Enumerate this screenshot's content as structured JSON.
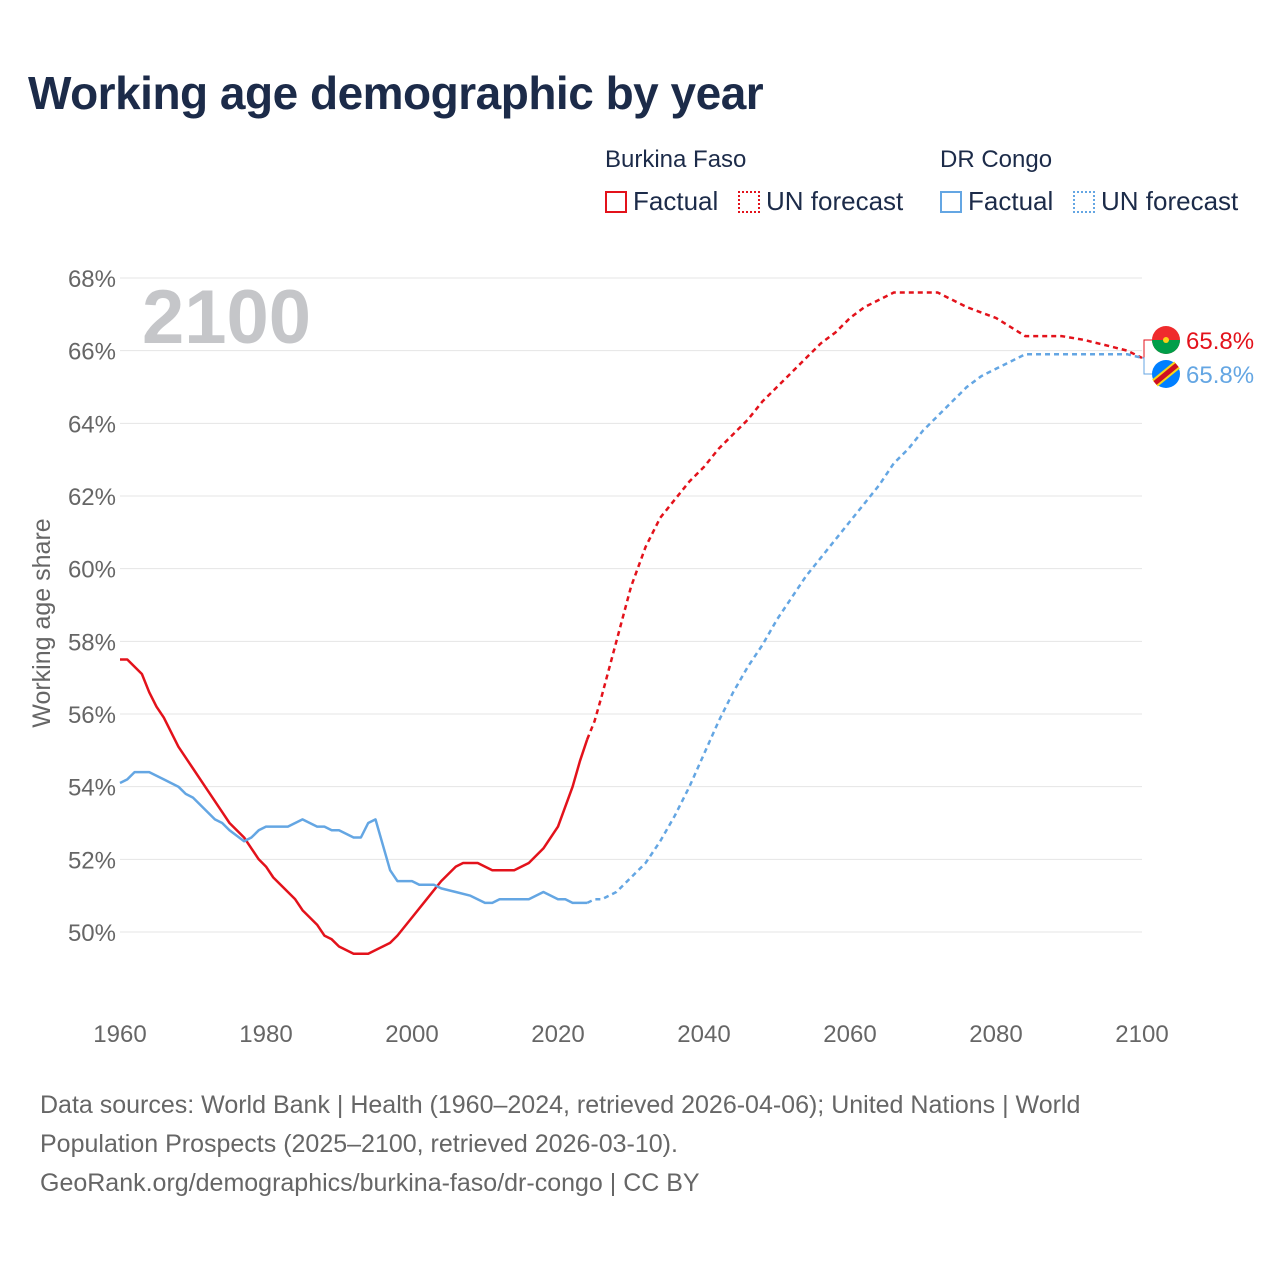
{
  "title": "Working age demographic by year",
  "legend": {
    "groups": [
      {
        "name": "Burkina Faso",
        "factual_label": "Factual",
        "forecast_label": "UN forecast",
        "color": "#e3121b"
      },
      {
        "name": "DR Congo",
        "factual_label": "Factual",
        "forecast_label": "UN forecast",
        "color": "#64a6e3"
      }
    ]
  },
  "footer": {
    "line1": "Data sources: World Bank | Health (1960–2024, retrieved 2026-04-06); United Nations | World",
    "line2": "Population Prospects (2025–2100, retrieved 2026-03-10).",
    "line3": "GeoRank.org/demographics/burkina-faso/dr-congo | CC BY"
  },
  "chart_data": {
    "type": "line",
    "title": "Working age demographic by year",
    "year_watermark": "2100",
    "ylabel": "Working age share",
    "xlabel": "",
    "xlim": [
      1960,
      2100
    ],
    "ylim": [
      48,
      68
    ],
    "x_ticks": [
      1960,
      1980,
      2000,
      2020,
      2040,
      2060,
      2080,
      2100
    ],
    "y_ticks": [
      50,
      52,
      54,
      56,
      58,
      60,
      62,
      64,
      66,
      68
    ],
    "y_tick_suffix": "%",
    "grid": true,
    "factual_end_year": 2024,
    "series": [
      {
        "name": "Burkina Faso",
        "color": "#e3121b",
        "end_label": "65.8%",
        "points": [
          [
            1960,
            57.5
          ],
          [
            1961,
            57.5
          ],
          [
            1963,
            57.1
          ],
          [
            1964,
            56.6
          ],
          [
            1965,
            56.2
          ],
          [
            1966,
            55.9
          ],
          [
            1968,
            55.1
          ],
          [
            1970,
            54.5
          ],
          [
            1972,
            53.9
          ],
          [
            1974,
            53.3
          ],
          [
            1975,
            53.0
          ],
          [
            1977,
            52.6
          ],
          [
            1978,
            52.3
          ],
          [
            1979,
            52.0
          ],
          [
            1980,
            51.8
          ],
          [
            1981,
            51.5
          ],
          [
            1983,
            51.1
          ],
          [
            1984,
            50.9
          ],
          [
            1985,
            50.6
          ],
          [
            1987,
            50.2
          ],
          [
            1988,
            49.9
          ],
          [
            1989,
            49.8
          ],
          [
            1990,
            49.6
          ],
          [
            1992,
            49.4
          ],
          [
            1994,
            49.4
          ],
          [
            1996,
            49.6
          ],
          [
            1997,
            49.7
          ],
          [
            1998,
            49.9
          ],
          [
            2000,
            50.4
          ],
          [
            2002,
            50.9
          ],
          [
            2004,
            51.4
          ],
          [
            2006,
            51.8
          ],
          [
            2007,
            51.9
          ],
          [
            2009,
            51.9
          ],
          [
            2011,
            51.7
          ],
          [
            2014,
            51.7
          ],
          [
            2016,
            51.9
          ],
          [
            2018,
            52.3
          ],
          [
            2020,
            52.9
          ],
          [
            2022,
            54.0
          ],
          [
            2023,
            54.7
          ],
          [
            2024,
            55.3
          ],
          [
            2025,
            55.8
          ],
          [
            2026,
            56.5
          ],
          [
            2028,
            58.0
          ],
          [
            2030,
            59.5
          ],
          [
            2032,
            60.6
          ],
          [
            2034,
            61.4
          ],
          [
            2036,
            61.9
          ],
          [
            2038,
            62.4
          ],
          [
            2040,
            62.8
          ],
          [
            2042,
            63.3
          ],
          [
            2044,
            63.7
          ],
          [
            2046,
            64.1
          ],
          [
            2048,
            64.6
          ],
          [
            2050,
            65.0
          ],
          [
            2052,
            65.4
          ],
          [
            2054,
            65.8
          ],
          [
            2056,
            66.2
          ],
          [
            2058,
            66.5
          ],
          [
            2060,
            66.9
          ],
          [
            2062,
            67.2
          ],
          [
            2064,
            67.4
          ],
          [
            2066,
            67.6
          ],
          [
            2072,
            67.6
          ],
          [
            2074,
            67.4
          ],
          [
            2076,
            67.2
          ],
          [
            2080,
            66.9
          ],
          [
            2084,
            66.4
          ],
          [
            2089,
            66.4
          ],
          [
            2092,
            66.3
          ],
          [
            2096,
            66.1
          ],
          [
            2098,
            66.0
          ],
          [
            2100,
            65.8
          ]
        ]
      },
      {
        "name": "DR Congo",
        "color": "#64a6e3",
        "end_label": "65.8%",
        "points": [
          [
            1960,
            54.1
          ],
          [
            1961,
            54.2
          ],
          [
            1962,
            54.4
          ],
          [
            1964,
            54.4
          ],
          [
            1966,
            54.2
          ],
          [
            1968,
            54.0
          ],
          [
            1969,
            53.8
          ],
          [
            1970,
            53.7
          ],
          [
            1972,
            53.3
          ],
          [
            1973,
            53.1
          ],
          [
            1974,
            53.0
          ],
          [
            1975,
            52.8
          ],
          [
            1977,
            52.5
          ],
          [
            1978,
            52.6
          ],
          [
            1979,
            52.8
          ],
          [
            1980,
            52.9
          ],
          [
            1983,
            52.9
          ],
          [
            1985,
            53.1
          ],
          [
            1987,
            52.9
          ],
          [
            1988,
            52.9
          ],
          [
            1989,
            52.8
          ],
          [
            1990,
            52.8
          ],
          [
            1992,
            52.6
          ],
          [
            1993,
            52.6
          ],
          [
            1994,
            53.0
          ],
          [
            1995,
            53.1
          ],
          [
            1996,
            52.4
          ],
          [
            1997,
            51.7
          ],
          [
            1998,
            51.4
          ],
          [
            2000,
            51.4
          ],
          [
            2001,
            51.3
          ],
          [
            2003,
            51.3
          ],
          [
            2004,
            51.2
          ],
          [
            2006,
            51.1
          ],
          [
            2008,
            51.0
          ],
          [
            2010,
            50.8
          ],
          [
            2011,
            50.8
          ],
          [
            2012,
            50.9
          ],
          [
            2016,
            50.9
          ],
          [
            2018,
            51.1
          ],
          [
            2020,
            50.9
          ],
          [
            2021,
            50.9
          ],
          [
            2022,
            50.8
          ],
          [
            2024,
            50.8
          ],
          [
            2025,
            50.9
          ],
          [
            2026,
            50.9
          ],
          [
            2028,
            51.1
          ],
          [
            2030,
            51.5
          ],
          [
            2032,
            51.9
          ],
          [
            2034,
            52.5
          ],
          [
            2036,
            53.2
          ],
          [
            2038,
            54.0
          ],
          [
            2040,
            54.9
          ],
          [
            2042,
            55.8
          ],
          [
            2044,
            56.6
          ],
          [
            2046,
            57.3
          ],
          [
            2048,
            57.9
          ],
          [
            2050,
            58.6
          ],
          [
            2052,
            59.2
          ],
          [
            2054,
            59.8
          ],
          [
            2056,
            60.3
          ],
          [
            2058,
            60.8
          ],
          [
            2060,
            61.3
          ],
          [
            2062,
            61.8
          ],
          [
            2064,
            62.3
          ],
          [
            2066,
            62.9
          ],
          [
            2068,
            63.3
          ],
          [
            2070,
            63.8
          ],
          [
            2072,
            64.2
          ],
          [
            2074,
            64.6
          ],
          [
            2076,
            65.0
          ],
          [
            2078,
            65.3
          ],
          [
            2080,
            65.5
          ],
          [
            2082,
            65.7
          ],
          [
            2084,
            65.9
          ],
          [
            2086,
            65.9
          ],
          [
            2098,
            65.9
          ],
          [
            2100,
            65.8
          ]
        ]
      }
    ]
  }
}
